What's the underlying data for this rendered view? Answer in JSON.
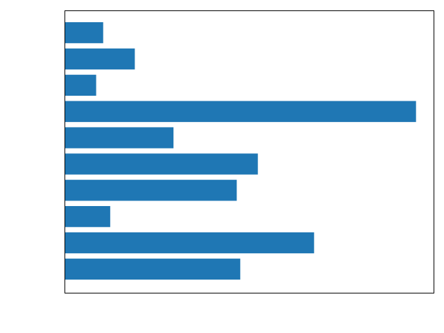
{
  "chart_data": {
    "type": "bar",
    "orientation": "horizontal",
    "title": "",
    "xlabel": "",
    "ylabel": "",
    "grid": false,
    "legend": "none",
    "bar_color": "#1f77b4",
    "xlim": [
      0,
      1.05
    ],
    "values": [
      0.11,
      0.2,
      0.09,
      1.0,
      0.31,
      0.55,
      0.49,
      0.13,
      0.71,
      0.5
    ]
  }
}
